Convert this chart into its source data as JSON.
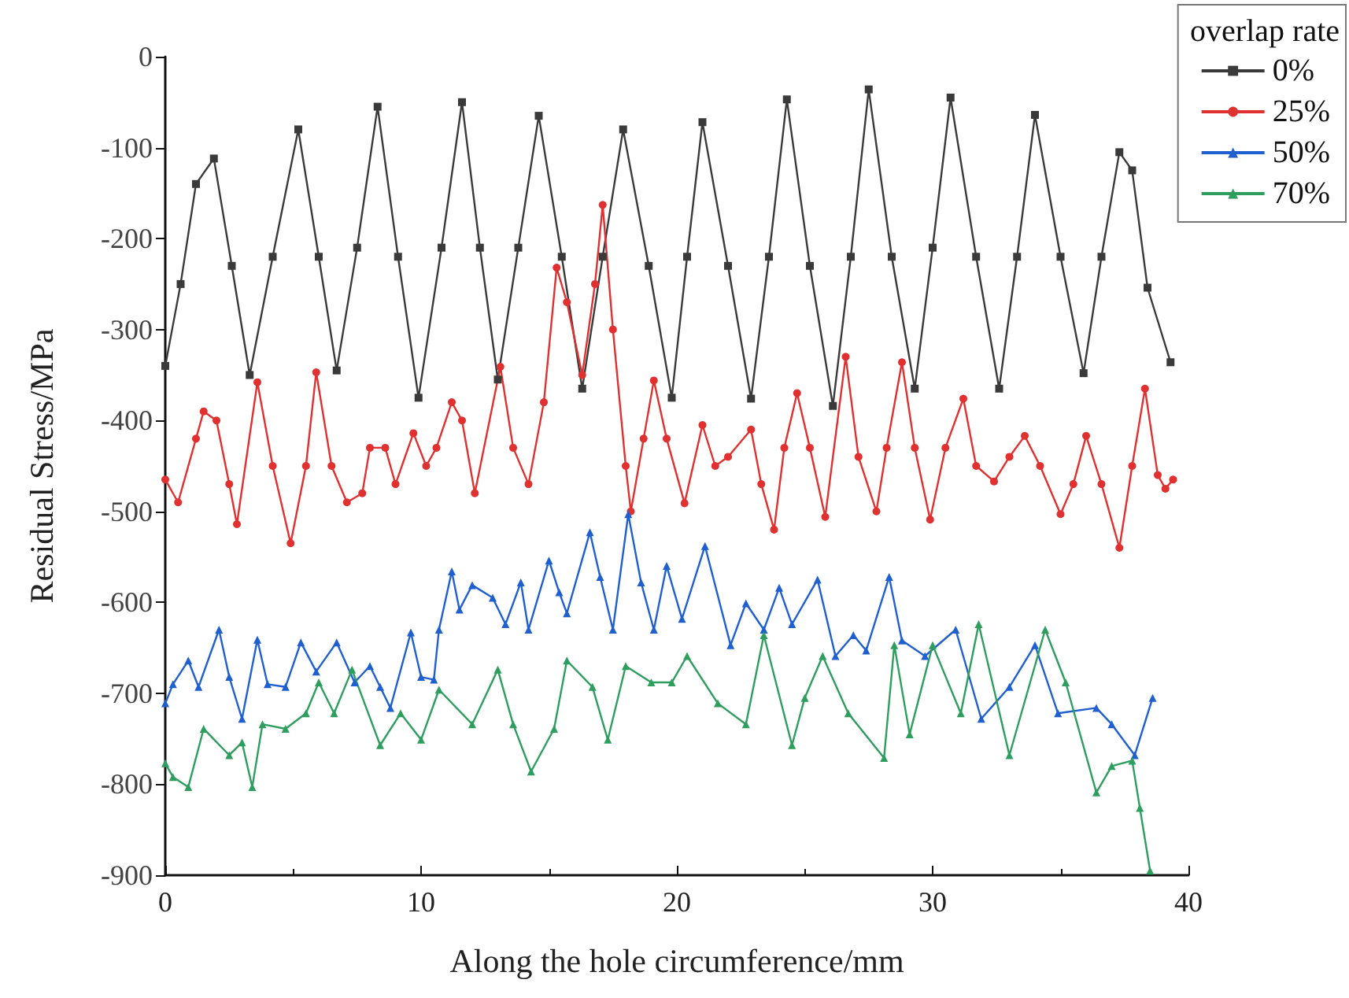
{
  "chart_data": {
    "type": "line",
    "xlabel": "Along the hole circumference/mm",
    "ylabel": "Residual Stress/MPa",
    "legend_title": "overlap rate",
    "legend": "top right",
    "grid": false,
    "line_style": "solid",
    "xlim": [
      0,
      40
    ],
    "xticks": [
      0,
      10,
      20,
      30,
      40
    ],
    "ylim": [
      -900,
      0
    ],
    "yticks": [
      -900,
      -800,
      -700,
      -600,
      -500,
      -400,
      -300,
      -200,
      -100,
      0
    ],
    "series": [
      {
        "name": "0%",
        "color": "#3a3a3a",
        "marker": "square",
        "x": [
          0,
          0.6,
          1.2,
          1.9,
          2.6,
          3.3,
          4.2,
          5.2,
          6.0,
          6.7,
          7.5,
          8.3,
          9.1,
          9.9,
          10.8,
          11.6,
          12.3,
          13.0,
          13.8,
          14.6,
          15.5,
          16.3,
          17.1,
          17.9,
          18.9,
          19.8,
          20.4,
          21.0,
          22.0,
          22.9,
          23.6,
          24.3,
          25.2,
          26.1,
          26.8,
          27.5,
          28.4,
          29.3,
          30.0,
          30.7,
          31.7,
          32.6,
          33.3,
          34.0,
          35.0,
          35.9,
          36.6,
          37.3,
          37.8,
          38.4,
          39.3
        ],
        "values": [
          -340,
          -250,
          -140,
          -112,
          -230,
          -350,
          -220,
          -80,
          -220,
          -345,
          -210,
          -55,
          -220,
          -375,
          -210,
          -50,
          -210,
          -355,
          -210,
          -65,
          -220,
          -365,
          -220,
          -80,
          -230,
          -375,
          -220,
          -72,
          -230,
          -376,
          -220,
          -47,
          -230,
          -384,
          -220,
          -36,
          -220,
          -365,
          -210,
          -45,
          -220,
          -365,
          -220,
          -64,
          -220,
          -348,
          -220,
          -105,
          -125,
          -254,
          -336
        ]
      },
      {
        "name": "25%",
        "color": "#e03030",
        "marker": "circle",
        "x": [
          0,
          0.5,
          1.2,
          1.5,
          2.0,
          2.5,
          2.8,
          3.6,
          4.2,
          4.9,
          5.5,
          5.9,
          6.5,
          7.1,
          7.7,
          8.0,
          8.6,
          9.0,
          9.7,
          10.2,
          10.6,
          11.2,
          11.6,
          12.1,
          13.1,
          13.6,
          14.2,
          14.8,
          15.3,
          15.7,
          16.3,
          16.8,
          17.1,
          17.5,
          18.0,
          18.2,
          18.7,
          19.1,
          19.6,
          20.3,
          21.0,
          21.5,
          22.0,
          22.9,
          23.3,
          23.8,
          24.2,
          24.7,
          25.2,
          25.8,
          26.6,
          27.1,
          27.8,
          28.2,
          28.8,
          29.3,
          29.9,
          30.5,
          31.2,
          31.7,
          32.4,
          33.0,
          33.6,
          34.2,
          35.0,
          35.5,
          36.0,
          36.6,
          37.3,
          37.8,
          38.3,
          38.8,
          39.1,
          39.4
        ],
        "values": [
          -465,
          -490,
          -420,
          -390,
          -400,
          -470,
          -514,
          -358,
          -450,
          -535,
          -450,
          -347,
          -450,
          -490,
          -480,
          -430,
          -430,
          -470,
          -414,
          -450,
          -430,
          -380,
          -400,
          -480,
          -341,
          -430,
          -470,
          -380,
          -232,
          -270,
          -350,
          -250,
          -163,
          -300,
          -450,
          -500,
          -420,
          -356,
          -420,
          -491,
          -405,
          -450,
          -440,
          -410,
          -470,
          -520,
          -430,
          -370,
          -430,
          -506,
          -330,
          -440,
          -500,
          -430,
          -336,
          -430,
          -509,
          -430,
          -376,
          -450,
          -467,
          -440,
          -417,
          -450,
          -503,
          -470,
          -417,
          -470,
          -540,
          -450,
          -365,
          -460,
          -475,
          -465
        ]
      },
      {
        "name": "50%",
        "color": "#1f5fd0",
        "marker": "triangle",
        "x": [
          0,
          0.3,
          0.9,
          1.3,
          2.1,
          2.5,
          3.0,
          3.6,
          4.0,
          4.7,
          5.3,
          5.9,
          6.7,
          7.4,
          8.0,
          8.4,
          8.8,
          9.6,
          10.0,
          10.5,
          10.7,
          11.2,
          11.5,
          12.0,
          12.8,
          13.3,
          13.9,
          14.2,
          15.0,
          15.4,
          15.7,
          16.6,
          17.0,
          17.5,
          18.1,
          18.6,
          19.1,
          19.6,
          20.2,
          21.1,
          22.1,
          22.7,
          23.4,
          24.0,
          24.5,
          25.5,
          26.2,
          26.9,
          27.4,
          28.3,
          28.8,
          29.7,
          30.9,
          31.9,
          33.0,
          34.0,
          34.9,
          36.4,
          37.0,
          37.9,
          38.6
        ],
        "values": [
          -711,
          -690,
          -664,
          -693,
          -630,
          -682,
          -728,
          -641,
          -690,
          -693,
          -644,
          -676,
          -644,
          -688,
          -670,
          -693,
          -716,
          -633,
          -682,
          -685,
          -630,
          -566,
          -608,
          -581,
          -595,
          -624,
          -578,
          -630,
          -554,
          -589,
          -612,
          -523,
          -572,
          -630,
          -503,
          -578,
          -630,
          -560,
          -618,
          -538,
          -647,
          -601,
          -630,
          -584,
          -624,
          -575,
          -659,
          -636,
          -653,
          -572,
          -642,
          -659,
          -630,
          -728,
          -693,
          -647,
          -722,
          -716,
          -734,
          -768,
          -705
        ]
      },
      {
        "name": "70%",
        "color": "#2e9e5e",
        "marker": "triangle",
        "x": [
          0,
          0.3,
          0.9,
          1.5,
          2.5,
          3.0,
          3.4,
          3.8,
          4.7,
          5.5,
          6.0,
          6.6,
          7.3,
          8.4,
          9.2,
          10.0,
          10.7,
          12.0,
          13.0,
          13.6,
          14.3,
          15.2,
          15.7,
          16.7,
          17.3,
          18.0,
          19.0,
          19.8,
          20.4,
          21.6,
          22.7,
          23.4,
          24.5,
          25.0,
          25.7,
          26.7,
          28.1,
          28.5,
          29.1,
          30.0,
          31.1,
          31.8,
          33.0,
          34.4,
          35.2,
          36.4,
          37.0,
          37.8,
          38.1,
          38.5
        ],
        "values": [
          -777,
          -792,
          -803,
          -739,
          -768,
          -754,
          -803,
          -734,
          -739,
          -722,
          -688,
          -722,
          -674,
          -757,
          -722,
          -751,
          -696,
          -734,
          -674,
          -734,
          -786,
          -739,
          -664,
          -693,
          -751,
          -670,
          -688,
          -688,
          -659,
          -711,
          -734,
          -636,
          -757,
          -705,
          -659,
          -722,
          -771,
          -647,
          -745,
          -647,
          -722,
          -624,
          -768,
          -630,
          -688,
          -809,
          -780,
          -774,
          -826,
          -895
        ]
      }
    ]
  }
}
